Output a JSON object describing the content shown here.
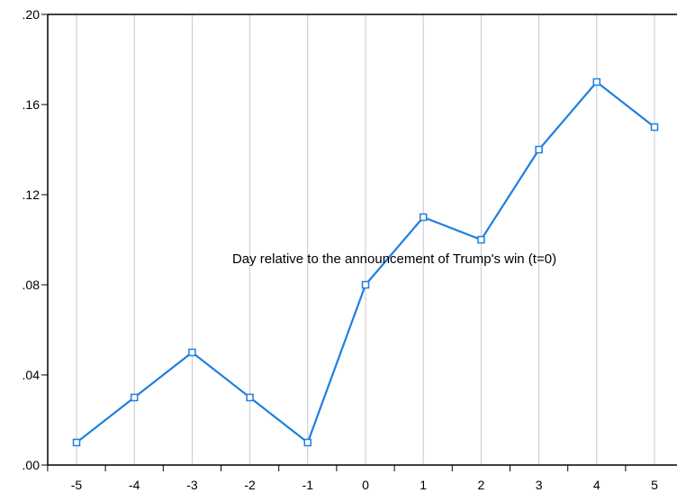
{
  "chart_data": {
    "type": "line",
    "title": "",
    "xlabel": "",
    "ylabel": "",
    "x": [
      -5,
      -4,
      -3,
      -2,
      -1,
      0,
      1,
      2,
      3,
      4,
      5
    ],
    "x_tick_labels": [
      "-5",
      "-4",
      "-3",
      "-2",
      "-1",
      "0",
      "1",
      "2",
      "3",
      "4",
      "5"
    ],
    "series": [
      {
        "values": [
          0.01,
          0.03,
          0.05,
          0.03,
          0.01,
          0.08,
          0.11,
          0.1,
          0.14,
          0.17,
          0.15
        ],
        "color": "#1f7fe0",
        "marker": "hollow-square"
      }
    ],
    "ylim": [
      0.0,
      0.2
    ],
    "y_ticks": [
      0.0,
      0.04,
      0.08,
      0.12,
      0.16,
      0.2
    ],
    "y_tick_labels": [
      ".00",
      ".04",
      ".08",
      ".12",
      ".16",
      ".20"
    ],
    "grid": "vertical",
    "grid_color": "#c8c8c8",
    "annotation": "Day relative to the announcement of Trump's win (t=0)"
  }
}
